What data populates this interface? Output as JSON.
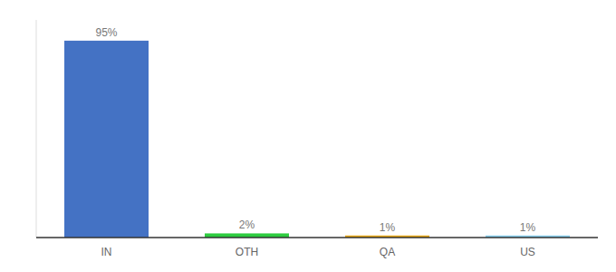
{
  "chart_data": {
    "type": "bar",
    "categories": [
      "IN",
      "OTH",
      "QA",
      "US"
    ],
    "values": [
      95,
      2,
      1,
      1
    ],
    "value_labels": [
      "95%",
      "2%",
      "1%",
      "1%"
    ],
    "colors": [
      "#4472c4",
      "#2ecc40",
      "#e6a817",
      "#87ceeb"
    ],
    "ylim": [
      0,
      105
    ],
    "data_labels": true,
    "tick_labels": "x",
    "grid": false
  }
}
